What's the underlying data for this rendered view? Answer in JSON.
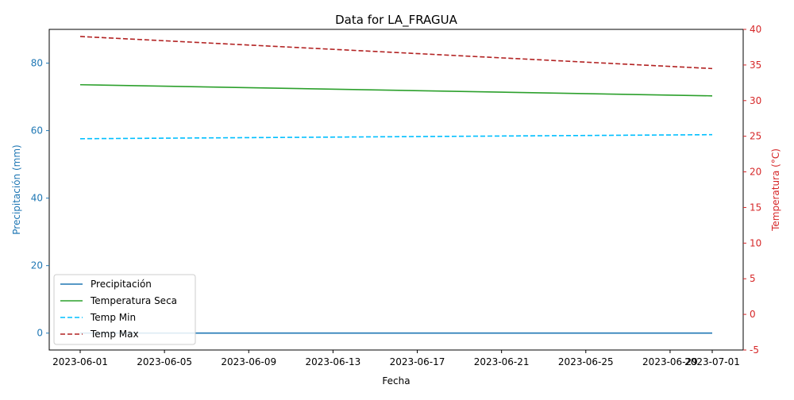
{
  "chart_data": {
    "type": "line",
    "title": "Data for LA_FRAGUA",
    "xlabel": "Fecha",
    "ylabel_left": "Precipitación (mm)",
    "ylabel_right": "Temperatura (°C)",
    "x_start": "2023-06-01",
    "x_end": "2023-07-01",
    "x_ticks": [
      "2023-06-01",
      "2023-06-05",
      "2023-06-09",
      "2023-06-13",
      "2023-06-17",
      "2023-06-21",
      "2023-06-25",
      "2023-06-29",
      "2023-07-01"
    ],
    "x_tick_day_offsets": [
      0,
      4,
      8,
      12,
      16,
      20,
      24,
      28,
      30
    ],
    "ylim_left": [
      -5,
      90
    ],
    "yticks_left": [
      0,
      20,
      40,
      60,
      80
    ],
    "ylim_right": [
      -5,
      40
    ],
    "yticks_right": [
      -5,
      0,
      5,
      10,
      15,
      20,
      25,
      30,
      35,
      40
    ],
    "left_axis_color": "#1f77b4",
    "right_axis_color": "#d62728",
    "grid": false,
    "legend_position": "lower-left",
    "series": [
      {
        "name": "Precipitación",
        "axis": "left",
        "color": "#1f77b4",
        "dash": "solid",
        "values": [
          0,
          0
        ]
      },
      {
        "name": "Temperatura Seca",
        "axis": "left",
        "color": "#2ca02c",
        "dash": "solid",
        "values": [
          73.6,
          70.3
        ]
      },
      {
        "name": "Temp Min",
        "axis": "left",
        "color": "#00bfff",
        "dash": "dashed",
        "values": [
          57.6,
          58.8
        ]
      },
      {
        "name": "Temp Max",
        "axis": "right",
        "color": "#b22222",
        "dash": "dashed",
        "values": [
          39.0,
          34.5
        ]
      }
    ]
  }
}
